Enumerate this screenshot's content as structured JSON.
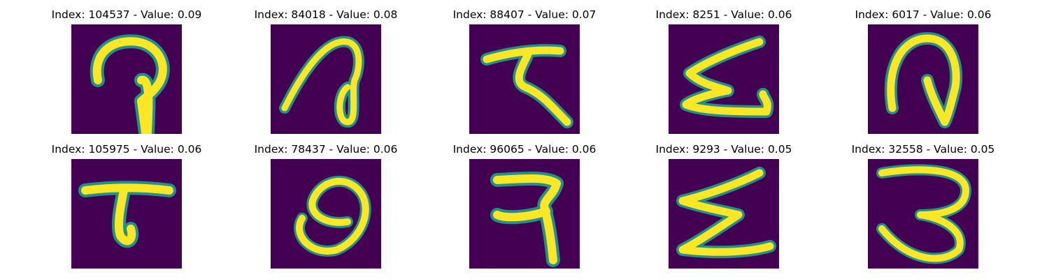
{
  "colors": {
    "background": "#440154",
    "edge": "#21918c",
    "mid": "#5ec962",
    "stroke": "#fde725"
  },
  "panels": [
    {
      "title": "Index: 104537 - Value: 0.09"
    },
    {
      "title": "Index: 84018 - Value: 0.08"
    },
    {
      "title": "Index: 88407 - Value: 0.07"
    },
    {
      "title": "Index: 8251 - Value: 0.06"
    },
    {
      "title": "Index: 6017 - Value: 0.06"
    },
    {
      "title": "Index: 105975 - Value: 0.06"
    },
    {
      "title": "Index: 78437 - Value: 0.06"
    },
    {
      "title": "Index: 96065 - Value: 0.06"
    },
    {
      "title": "Index: 9293 - Value: 0.05"
    },
    {
      "title": "Index: 32558 - Value: 0.05"
    }
  ]
}
